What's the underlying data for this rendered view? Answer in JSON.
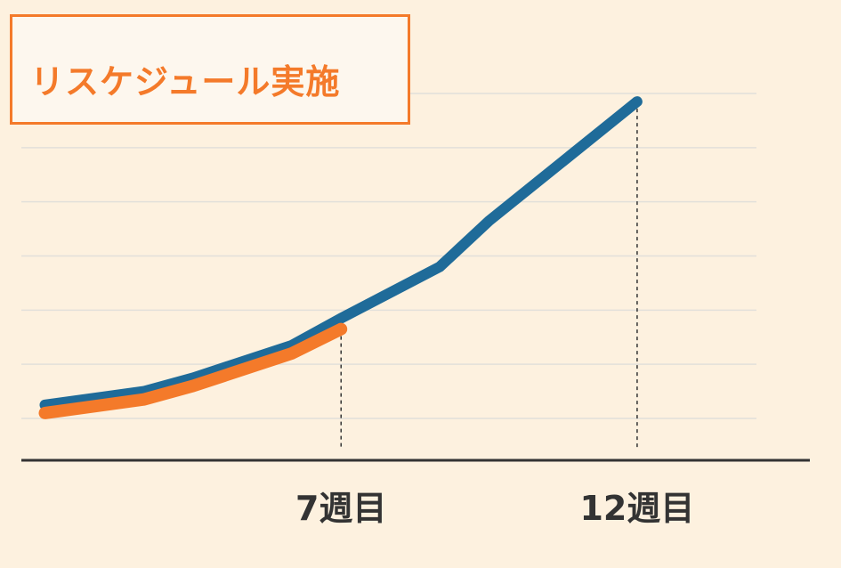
{
  "chart_data": {
    "type": "line",
    "title": "リスケジュール実施",
    "x": [
      0,
      2,
      3,
      5,
      6,
      8,
      9,
      12
    ],
    "xlim": [
      -0.1,
      15.5
    ],
    "ylim": [
      0,
      120
    ],
    "grid": true,
    "series": [
      {
        "color": "#1f6b99",
        "x": [
          0,
          2,
          3,
          5,
          6,
          8,
          9,
          12
        ],
        "values": [
          5,
          10,
          15,
          27,
          37,
          56,
          73,
          117
        ]
      },
      {
        "color": "#f47a2a",
        "x": [
          0,
          2,
          3,
          5,
          6
        ],
        "values": [
          2,
          7,
          12,
          24,
          33
        ]
      }
    ],
    "markers": [
      {
        "x": 6,
        "y": 33,
        "label": "7週目"
      },
      {
        "x": 12,
        "y": 117,
        "label": "12週目"
      }
    ]
  },
  "colors": {
    "background": "#fdf1df",
    "accent": "#f47a2a",
    "axis": "#333333",
    "grid": "#e2e0da"
  }
}
